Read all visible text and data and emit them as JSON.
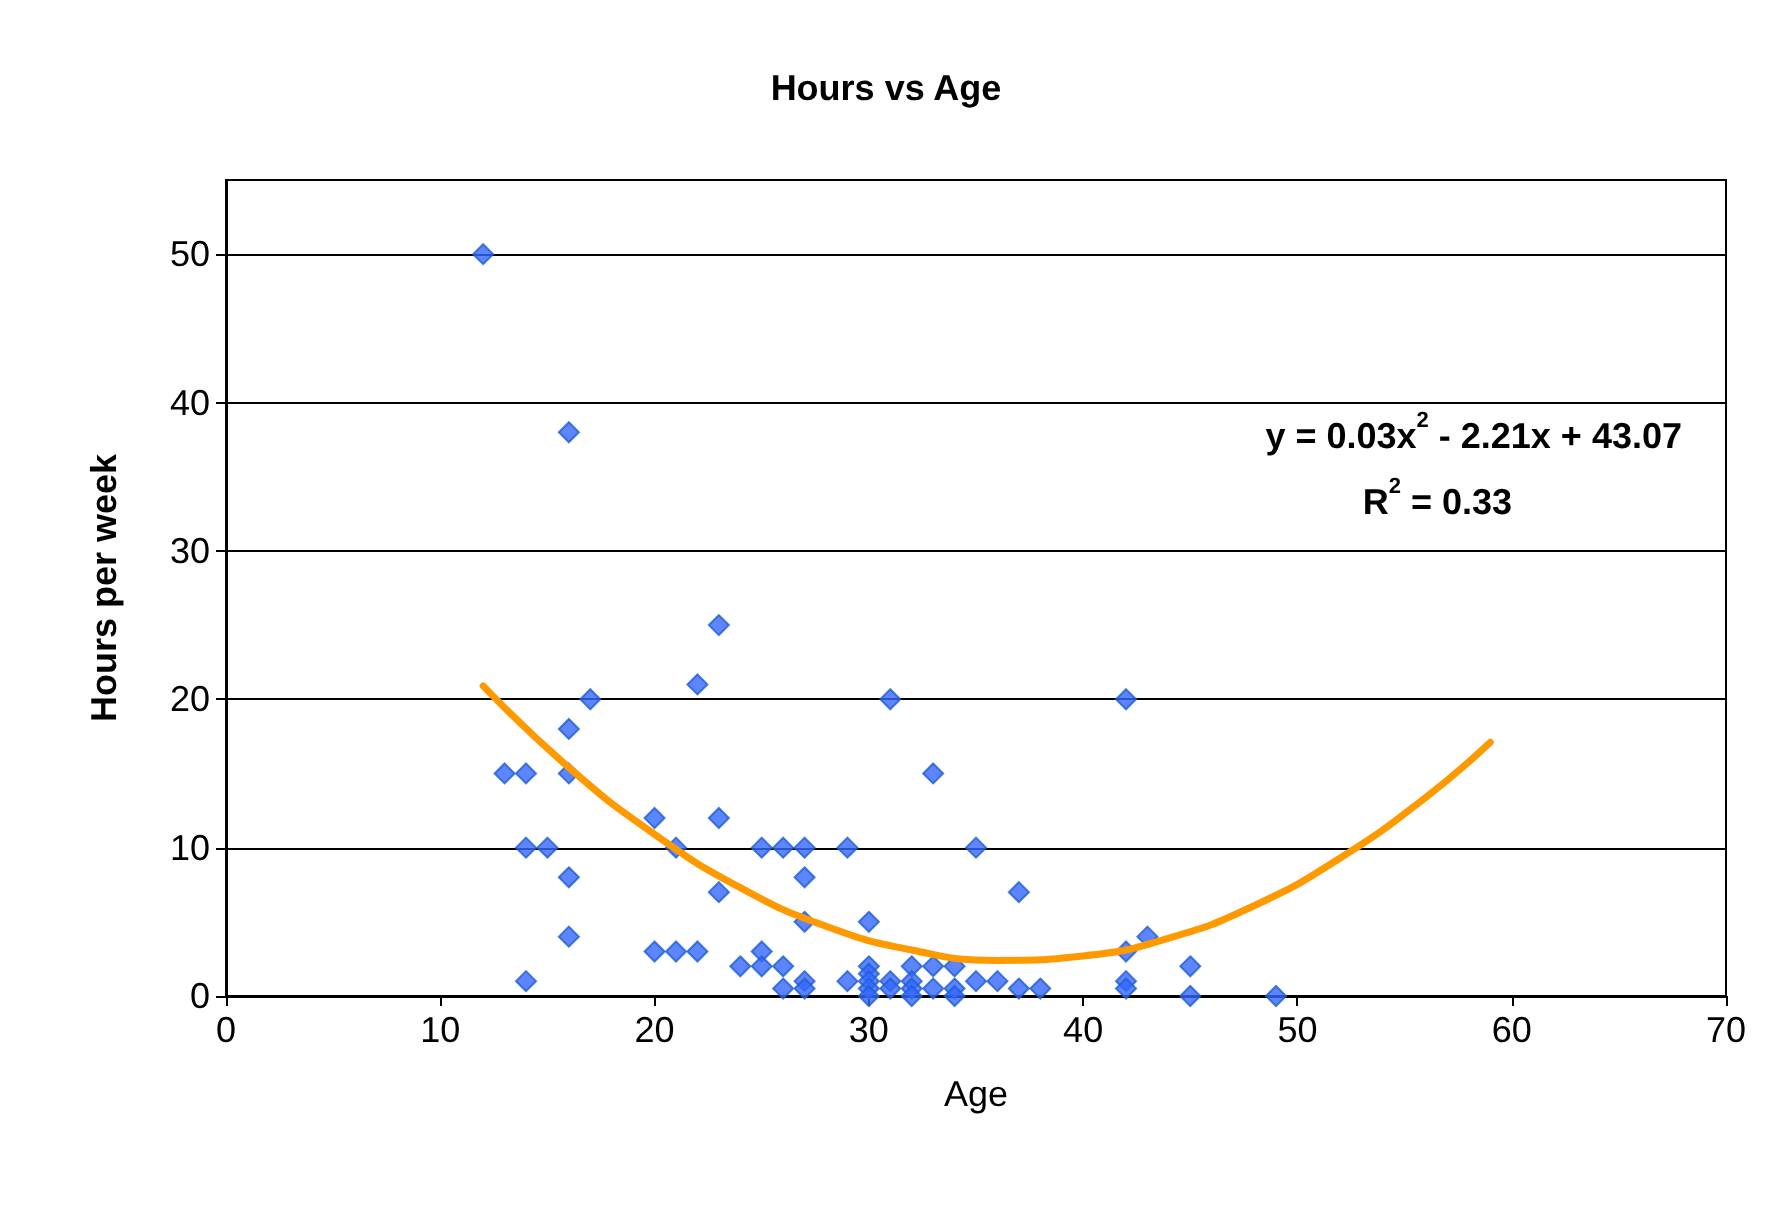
{
  "chart_data": {
    "type": "scatter",
    "title": "Hours vs Age",
    "xlabel": "Age",
    "ylabel": "Hours per week",
    "xlim": [
      0,
      70
    ],
    "xticks": [
      0,
      10,
      20,
      30,
      40,
      50,
      60,
      70
    ],
    "ylim": [
      0,
      55
    ],
    "yticks": [
      0,
      10,
      20,
      30,
      40,
      50
    ],
    "grid": "y",
    "marker": "diamond",
    "annotations": [
      "y = 0.03x$^{2}$ - 2.21x + 43.07",
      "R$^{2}$ = 0.33"
    ],
    "series": [
      {
        "color": "#3366ff",
        "x": [
          12,
          13,
          14,
          14,
          14,
          15,
          16,
          16,
          16,
          16,
          16,
          17,
          20,
          20,
          21,
          21,
          22,
          22,
          23,
          23,
          23,
          24,
          25,
          25,
          25,
          26,
          26,
          26,
          27,
          27,
          27,
          27,
          27,
          29,
          29,
          30,
          30,
          30,
          30,
          30,
          30,
          31,
          31,
          31,
          32,
          32,
          32,
          32,
          33,
          33,
          33,
          34,
          34,
          34,
          35,
          35,
          36,
          37,
          37,
          38,
          42,
          42,
          42,
          42,
          43,
          45,
          45,
          49
        ],
        "values": [
          50,
          15,
          15,
          10,
          1,
          10,
          38,
          18,
          15,
          8,
          4,
          20,
          12,
          3,
          10,
          3,
          21,
          3,
          25,
          12,
          7,
          2,
          10,
          3,
          2,
          10,
          2,
          0.5,
          10,
          8,
          5,
          1,
          0.5,
          10,
          1,
          5,
          2,
          1.5,
          1,
          0.5,
          0,
          20,
          1,
          0.5,
          2,
          1,
          0.5,
          0,
          15,
          2,
          0.5,
          2,
          0.5,
          0,
          10,
          1,
          1,
          7,
          0.5,
          0.5,
          20,
          3,
          1,
          0.5,
          4,
          2,
          0,
          0
        ]
      },
      {
        "type": "line",
        "color": "#ff9900",
        "marker": "none",
        "x": [
          12,
          16,
          20,
          24,
          28,
          32,
          36,
          40,
          44,
          48,
          52,
          56,
          59
        ],
        "values": [
          20.9,
          15.4,
          10.9,
          7.3,
          4.7,
          3.1,
          2.4,
          2.7,
          3.9,
          6.1,
          9.3,
          13.4,
          17.1
        ]
      }
    ]
  }
}
